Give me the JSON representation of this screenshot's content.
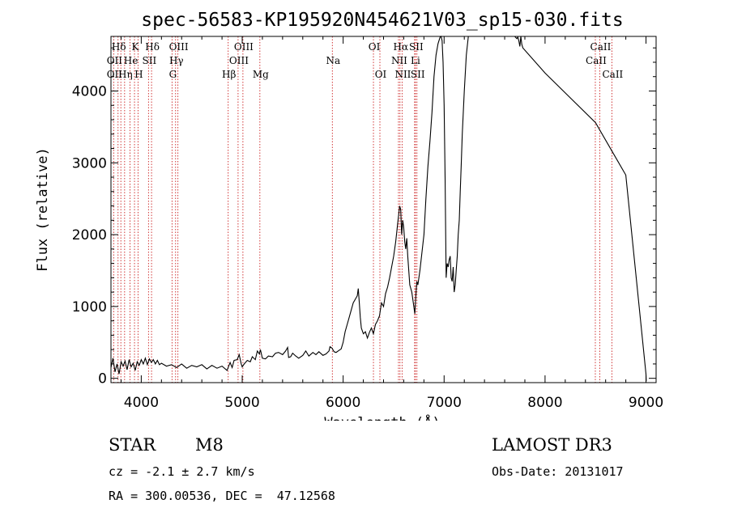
{
  "chart_data": {
    "type": "line",
    "title": "spec-56583-KP195920N454621V03_sp15-030.fits",
    "xlabel": "Wavelength (Å)",
    "ylabel": "Flux (relative)",
    "xlim": [
      3700,
      9100
    ],
    "ylim": [
      -60,
      4760
    ],
    "xticks": [
      4000,
      5000,
      6000,
      7000,
      8000,
      9000
    ],
    "yticks": [
      0,
      1000,
      2000,
      3000,
      4000
    ],
    "series": [
      {
        "name": "flux",
        "x": [
          3700,
          3720,
          3740,
          3760,
          3780,
          3800,
          3820,
          3840,
          3860,
          3880,
          3900,
          3920,
          3940,
          3960,
          3980,
          4000,
          4020,
          4040,
          4060,
          4080,
          4100,
          4120,
          4140,
          4160,
          4180,
          4200,
          4250,
          4300,
          4350,
          4400,
          4450,
          4500,
          4550,
          4600,
          4650,
          4700,
          4750,
          4800,
          4850,
          4880,
          4900,
          4920,
          4950,
          4970,
          4990,
          5000,
          5020,
          5050,
          5080,
          5100,
          5130,
          5150,
          5170,
          5180,
          5200,
          5230,
          5260,
          5300,
          5330,
          5360,
          5400,
          5430,
          5450,
          5460,
          5480,
          5500,
          5530,
          5560,
          5600,
          5630,
          5660,
          5700,
          5730,
          5760,
          5800,
          5830,
          5860,
          5870,
          5890,
          5910,
          5930,
          5950,
          5980,
          6000,
          6020,
          6050,
          6080,
          6100,
          6120,
          6140,
          6150,
          6160,
          6170,
          6180,
          6200,
          6220,
          6240,
          6260,
          6280,
          6300,
          6320,
          6340,
          6360,
          6380,
          6400,
          6420,
          6440,
          6460,
          6480,
          6500,
          6520,
          6540,
          6560,
          6570,
          6580,
          6590,
          6600,
          6610,
          6620,
          6630,
          6640,
          6660,
          6680,
          6700,
          6710,
          6720,
          6730,
          6740,
          6760,
          6780,
          6800,
          6820,
          6840,
          6860,
          6880,
          6900,
          6920,
          6940,
          6960,
          6970,
          6980,
          6990,
          7000,
          7010,
          7020,
          7030,
          7040,
          7050,
          7060,
          7070,
          7080,
          7090,
          7100,
          7110,
          7120,
          7130,
          7140,
          7150,
          7160,
          7170,
          7180,
          7200,
          7220,
          7240,
          7260,
          7280,
          7300,
          7320,
          7340,
          7360,
          7380,
          7400,
          7450,
          7500,
          7550,
          7600,
          7650,
          7700,
          7720,
          7730,
          7740,
          7750,
          7760,
          7770,
          7780,
          8000,
          8500,
          8800,
          9000,
          9001,
          9002
        ],
        "y": [
          150,
          280,
          90,
          200,
          60,
          230,
          170,
          240,
          120,
          260,
          160,
          210,
          110,
          230,
          180,
          260,
          200,
          280,
          190,
          270,
          220,
          260,
          200,
          250,
          190,
          210,
          170,
          190,
          150,
          200,
          140,
          180,
          160,
          190,
          130,
          180,
          140,
          170,
          110,
          220,
          150,
          250,
          260,
          330,
          200,
          160,
          200,
          250,
          230,
          300,
          260,
          380,
          340,
          400,
          280,
          270,
          310,
          300,
          350,
          360,
          330,
          380,
          430,
          290,
          300,
          350,
          310,
          280,
          320,
          380,
          310,
          360,
          330,
          370,
          320,
          340,
          380,
          440,
          420,
          370,
          360,
          380,
          410,
          500,
          650,
          800,
          950,
          1050,
          1100,
          1150,
          1250,
          1050,
          850,
          700,
          620,
          650,
          560,
          640,
          700,
          620,
          750,
          800,
          870,
          1050,
          1000,
          1180,
          1270,
          1400,
          1550,
          1700,
          1900,
          2150,
          2400,
          2350,
          2000,
          2200,
          2100,
          1900,
          1800,
          1950,
          1700,
          1300,
          1200,
          1000,
          900,
          1150,
          1350,
          1300,
          1500,
          1750,
          2000,
          2500,
          2950,
          3300,
          3700,
          4200,
          4500,
          4660,
          4750,
          4800,
          4700,
          4400,
          3800,
          2800,
          1400,
          1600,
          1550,
          1650,
          1700,
          1400,
          1350,
          1550,
          1200,
          1300,
          1500,
          1700,
          2000,
          2200,
          2600,
          3000,
          3400,
          4000,
          4500,
          4800,
          4800,
          4800,
          4800,
          4800,
          4800,
          4800,
          4800,
          4800,
          4800,
          4780,
          4800,
          4780,
          4760,
          4790,
          4730,
          4750,
          4700,
          4620,
          4760,
          4650,
          4600,
          4250,
          3560,
          2830,
          60,
          0,
          -40
        ]
      }
    ],
    "emission_lines": [
      {
        "label": "Hδ",
        "x": 3770,
        "row": 0
      },
      {
        "label": "K",
        "x": 3933,
        "row": 0
      },
      {
        "label": "Hδ",
        "x": 4102,
        "row": 0
      },
      {
        "label": "OIII",
        "x": 4363,
        "row": 0
      },
      {
        "label": "OIII",
        "x": 5007,
        "row": 0
      },
      {
        "label": "OI",
        "x": 6300,
        "row": 0
      },
      {
        "label": "Hα",
        "x": 6563,
        "row": 0
      },
      {
        "label": "SII",
        "x": 6716,
        "row": 0
      },
      {
        "label": "CaII",
        "x": 8542,
        "row": 0
      },
      {
        "label": "OII",
        "x": 3727,
        "row": 1
      },
      {
        "label": "He",
        "x": 3889,
        "row": 1
      },
      {
        "label": "SII",
        "x": 4072,
        "row": 1
      },
      {
        "label": "Hγ",
        "x": 4340,
        "row": 1
      },
      {
        "label": "OIII",
        "x": 4959,
        "row": 1
      },
      {
        "label": "Na",
        "x": 5893,
        "row": 1
      },
      {
        "label": "NII",
        "x": 6548,
        "row": 1
      },
      {
        "label": "Li",
        "x": 6708,
        "row": 1
      },
      {
        "label": "CaII",
        "x": 8498,
        "row": 1
      },
      {
        "label": "OII",
        "x": 3727,
        "row": 2
      },
      {
        "label": "Hη",
        "x": 3835,
        "row": 2
      },
      {
        "label": "H",
        "x": 3968,
        "row": 2
      },
      {
        "label": "G",
        "x": 4305,
        "row": 2
      },
      {
        "label": "Hβ",
        "x": 4861,
        "row": 2
      },
      {
        "label": "Mg",
        "x": 5175,
        "row": 2
      },
      {
        "label": "OI",
        "x": 6364,
        "row": 2
      },
      {
        "label": "NII",
        "x": 6584,
        "row": 2
      },
      {
        "label": "SII",
        "x": 6731,
        "row": 2
      },
      {
        "label": "CaII",
        "x": 8662,
        "row": 2
      }
    ],
    "line_markers_x": [
      3727,
      3770,
      3798,
      3835,
      3889,
      3933,
      3968,
      4072,
      4102,
      4305,
      4340,
      4363,
      4861,
      4959,
      5007,
      5175,
      5893,
      6300,
      6364,
      6548,
      6563,
      6584,
      6708,
      6716,
      6731,
      8498,
      8542,
      8662
    ]
  },
  "info": {
    "object_class": "STAR",
    "subclass": "M8",
    "survey": "LAMOST DR3",
    "cz": "cz = -2.1 ± 2.7 km/s",
    "obs_date": "Obs-Date: 20131017",
    "coords": "RA = 300.00536, DEC =  47.12568"
  }
}
